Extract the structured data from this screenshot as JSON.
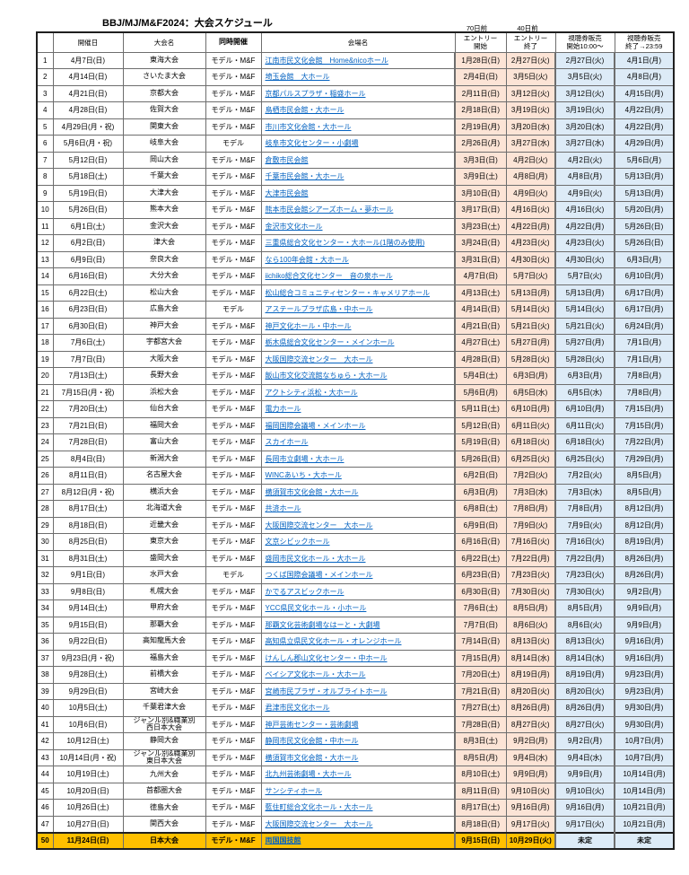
{
  "title": "BBJ/MJ/M&F2024：大会スケジュール",
  "notes": {
    "entry_start_days": "70日前",
    "entry_end_days": "40日前"
  },
  "headers": {
    "no": "",
    "date": "開催日",
    "event": "大会名",
    "category": "同時開催",
    "venue": "会場名",
    "entry_start": "エントリー\n開始",
    "entry_end": "エントリー\n終了",
    "ticket_start": "視聴券販売\n開始10:00～",
    "ticket_end": "視聴券販売\n終了→23:59"
  },
  "colors": {
    "entry_bg": "#fce4d6",
    "ticket_bg": "#ddebf7",
    "final_bg": "#ffc000",
    "link": "#0563c1"
  },
  "rows": [
    {
      "no": "1",
      "date": "4月7日(日)",
      "event": "東海大会",
      "category": "モデル・M&F",
      "venue": "江南市民文化会館　Home&nicoホール",
      "entry_start": "1月28日(日)",
      "entry_end": "2月27日(火)",
      "ticket_start": "2月27日(火)",
      "ticket_end": "4月1日(月)"
    },
    {
      "no": "2",
      "date": "4月14日(日)",
      "event": "さいたま大会",
      "category": "モデル・M&F",
      "venue": "埼玉会館　大ホール",
      "entry_start": "2月4日(日)",
      "entry_end": "3月5日(火)",
      "ticket_start": "3月5日(火)",
      "ticket_end": "4月8日(月)"
    },
    {
      "no": "3",
      "date": "4月21日(日)",
      "event": "京都大会",
      "category": "モデル・M&F",
      "venue": "京都パルスプラザ・稲盛ホール",
      "entry_start": "2月11日(日)",
      "entry_end": "3月12日(火)",
      "ticket_start": "3月12日(火)",
      "ticket_end": "4月15日(月)"
    },
    {
      "no": "4",
      "date": "4月28日(日)",
      "event": "佐賀大会",
      "category": "モデル・M&F",
      "venue": "鳥栖市民会館・大ホール",
      "entry_start": "2月18日(日)",
      "entry_end": "3月19日(火)",
      "ticket_start": "3月19日(火)",
      "ticket_end": "4月22日(月)"
    },
    {
      "no": "5",
      "date": "4月29日(月・祝)",
      "event": "関東大会",
      "category": "モデル・M&F",
      "venue": "市川市文化会館・大ホール",
      "entry_start": "2月19日(月)",
      "entry_end": "3月20日(水)",
      "ticket_start": "3月20日(水)",
      "ticket_end": "4月22日(月)"
    },
    {
      "no": "6",
      "date": "5月6日(月・祝)",
      "event": "岐阜大会",
      "category": "モデル",
      "venue": "岐阜市文化センター・小劇場",
      "entry_start": "2月26日(月)",
      "entry_end": "3月27日(水)",
      "ticket_start": "3月27日(水)",
      "ticket_end": "4月29日(月)"
    },
    {
      "no": "7",
      "date": "5月12日(日)",
      "event": "岡山大会",
      "category": "モデル・M&F",
      "venue": "倉敷市民会館",
      "entry_start": "3月3日(日)",
      "entry_end": "4月2日(火)",
      "ticket_start": "4月2日(火)",
      "ticket_end": "5月6日(月)"
    },
    {
      "no": "8",
      "date": "5月18日(土)",
      "event": "千葉大会",
      "category": "モデル・M&F",
      "venue": "千葉市民会館・大ホール",
      "entry_start": "3月9日(土)",
      "entry_end": "4月8日(月)",
      "ticket_start": "4月8日(月)",
      "ticket_end": "5月13日(月)"
    },
    {
      "no": "9",
      "date": "5月19日(日)",
      "event": "大津大会",
      "category": "モデル・M&F",
      "venue": "大津市民会館",
      "entry_start": "3月10日(日)",
      "entry_end": "4月9日(火)",
      "ticket_start": "4月9日(火)",
      "ticket_end": "5月13日(月)"
    },
    {
      "no": "10",
      "date": "5月26日(日)",
      "event": "熊本大会",
      "category": "モデル・M&F",
      "venue": "熊本市民会館シアーズホーム・夢ホール",
      "entry_start": "3月17日(日)",
      "entry_end": "4月16日(火)",
      "ticket_start": "4月16日(火)",
      "ticket_end": "5月20日(月)"
    },
    {
      "no": "11",
      "date": "6月1日(土)",
      "event": "金沢大会",
      "category": "モデル・M&F",
      "venue": "金沢市文化ホール",
      "entry_start": "3月23日(土)",
      "entry_end": "4月22日(月)",
      "ticket_start": "4月22日(月)",
      "ticket_end": "5月26日(日)"
    },
    {
      "no": "12",
      "date": "6月2日(日)",
      "event": "津大会",
      "category": "モデル・M&F",
      "venue": "三重県総合文化センター・大ホール(1階のみ使用)",
      "entry_start": "3月24日(日)",
      "entry_end": "4月23日(火)",
      "ticket_start": "4月23日(火)",
      "ticket_end": "5月26日(日)"
    },
    {
      "no": "13",
      "date": "6月9日(日)",
      "event": "奈良大会",
      "category": "モデル・M&F",
      "venue": "なら100年会館・大ホール",
      "entry_start": "3月31日(日)",
      "entry_end": "4月30日(火)",
      "ticket_start": "4月30日(火)",
      "ticket_end": "6月3日(月)"
    },
    {
      "no": "14",
      "date": "6月16日(日)",
      "event": "大分大会",
      "category": "モデル・M&F",
      "venue": "iichiko総合文化センター　音の泉ホール",
      "entry_start": "4月7日(日)",
      "entry_end": "5月7日(火)",
      "ticket_start": "5月7日(火)",
      "ticket_end": "6月10日(月)"
    },
    {
      "no": "15",
      "date": "6月22日(土)",
      "event": "松山大会",
      "category": "モデル・M&F",
      "venue": "松山総合コミュニティセンター・キャメリアホール",
      "entry_start": "4月13日(土)",
      "entry_end": "5月13日(月)",
      "ticket_start": "5月13日(月)",
      "ticket_end": "6月17日(月)"
    },
    {
      "no": "16",
      "date": "6月23日(日)",
      "event": "広島大会",
      "category": "モデル",
      "venue": "アステールプラザ広島・中ホール",
      "entry_start": "4月14日(日)",
      "entry_end": "5月14日(火)",
      "ticket_start": "5月14日(火)",
      "ticket_end": "6月17日(月)"
    },
    {
      "no": "17",
      "date": "6月30日(日)",
      "event": "神戸大会",
      "category": "モデル・M&F",
      "venue": "神戸文化ホール・中ホール",
      "entry_start": "4月21日(日)",
      "entry_end": "5月21日(火)",
      "ticket_start": "5月21日(火)",
      "ticket_end": "6月24日(月)"
    },
    {
      "no": "18",
      "date": "7月6日(土)",
      "event": "宇都宮大会",
      "category": "モデル・M&F",
      "venue": "栃木県総合文化センター・メインホール",
      "entry_start": "4月27日(土)",
      "entry_end": "5月27日(月)",
      "ticket_start": "5月27日(月)",
      "ticket_end": "7月1日(月)"
    },
    {
      "no": "19",
      "date": "7月7日(日)",
      "event": "大阪大会",
      "category": "モデル・M&F",
      "venue": "大阪国際交流センター　大ホール",
      "entry_start": "4月28日(日)",
      "entry_end": "5月28日(火)",
      "ticket_start": "5月28日(火)",
      "ticket_end": "7月1日(月)"
    },
    {
      "no": "20",
      "date": "7月13日(土)",
      "event": "長野大会",
      "category": "モデル・M&F",
      "venue": "飯山市文化交流館なちゅら・大ホール",
      "entry_start": "5月4日(土)",
      "entry_end": "6月3日(月)",
      "ticket_start": "6月3日(月)",
      "ticket_end": "7月8日(月)"
    },
    {
      "no": "21",
      "date": "7月15日(月・祝)",
      "event": "浜松大会",
      "category": "モデル・M&F",
      "venue": "アクトシティ浜松・大ホール",
      "entry_start": "5月6日(月)",
      "entry_end": "6月5日(水)",
      "ticket_start": "6月5日(水)",
      "ticket_end": "7月8日(月)"
    },
    {
      "no": "22",
      "date": "7月20日(土)",
      "event": "仙台大会",
      "category": "モデル・M&F",
      "venue": "電力ホール",
      "entry_start": "5月11日(土)",
      "entry_end": "6月10日(月)",
      "ticket_start": "6月10日(月)",
      "ticket_end": "7月15日(月)"
    },
    {
      "no": "23",
      "date": "7月21日(日)",
      "event": "福岡大会",
      "category": "モデル・M&F",
      "venue": "福岡国際会議場・メインホール",
      "entry_start": "5月12日(日)",
      "entry_end": "6月11日(火)",
      "ticket_start": "6月11日(火)",
      "ticket_end": "7月15日(月)"
    },
    {
      "no": "24",
      "date": "7月28日(日)",
      "event": "富山大会",
      "category": "モデル・M&F",
      "venue": "スカイホール",
      "entry_start": "5月19日(日)",
      "entry_end": "6月18日(火)",
      "ticket_start": "6月18日(火)",
      "ticket_end": "7月22日(月)"
    },
    {
      "no": "25",
      "date": "8月4日(日)",
      "event": "新潟大会",
      "category": "モデル・M&F",
      "venue": "長岡市立劇場・大ホール",
      "entry_start": "5月26日(日)",
      "entry_end": "6月25日(火)",
      "ticket_start": "6月25日(火)",
      "ticket_end": "7月29日(月)"
    },
    {
      "no": "26",
      "date": "8月11日(日)",
      "event": "名古屋大会",
      "category": "モデル・M&F",
      "venue": "WINCあいち・大ホール",
      "entry_start": "6月2日(日)",
      "entry_end": "7月2日(火)",
      "ticket_start": "7月2日(火)",
      "ticket_end": "8月5日(月)"
    },
    {
      "no": "27",
      "date": "8月12日(月・祝)",
      "event": "横浜大会",
      "category": "モデル・M&F",
      "venue": "横須賀市文化会館・大ホール",
      "entry_start": "6月3日(月)",
      "entry_end": "7月3日(水)",
      "ticket_start": "7月3日(水)",
      "ticket_end": "8月5日(月)"
    },
    {
      "no": "28",
      "date": "8月17日(土)",
      "event": "北海道大会",
      "category": "モデル・M&F",
      "venue": "共済ホール",
      "entry_start": "6月8日(土)",
      "entry_end": "7月8日(月)",
      "ticket_start": "7月8日(月)",
      "ticket_end": "8月12日(月)"
    },
    {
      "no": "29",
      "date": "8月18日(日)",
      "event": "近畿大会",
      "category": "モデル・M&F",
      "venue": "大阪国際交流センター　大ホール",
      "entry_start": "6月9日(日)",
      "entry_end": "7月9日(火)",
      "ticket_start": "7月9日(火)",
      "ticket_end": "8月12日(月)"
    },
    {
      "no": "30",
      "date": "8月25日(日)",
      "event": "東京大会",
      "category": "モデル・M&F",
      "venue": "文京シビックホール",
      "entry_start": "6月16日(日)",
      "entry_end": "7月16日(火)",
      "ticket_start": "7月16日(火)",
      "ticket_end": "8月19日(月)"
    },
    {
      "no": "31",
      "date": "8月31日(土)",
      "event": "盛岡大会",
      "category": "モデル・M&F",
      "venue": "盛岡市民文化ホール・大ホール",
      "entry_start": "6月22日(土)",
      "entry_end": "7月22日(月)",
      "ticket_start": "7月22日(月)",
      "ticket_end": "8月26日(月)"
    },
    {
      "no": "32",
      "date": "9月1日(日)",
      "event": "水戸大会",
      "category": "モデル",
      "venue": "つくば国際会議場・メインホール",
      "entry_start": "6月23日(日)",
      "entry_end": "7月23日(火)",
      "ticket_start": "7月23日(火)",
      "ticket_end": "8月26日(月)"
    },
    {
      "no": "33",
      "date": "9月8日(日)",
      "event": "札幌大会",
      "category": "モデル・M&F",
      "venue": "かでるアスビックホール",
      "entry_start": "6月30日(日)",
      "entry_end": "7月30日(火)",
      "ticket_start": "7月30日(火)",
      "ticket_end": "9月2日(月)"
    },
    {
      "no": "34",
      "date": "9月14日(土)",
      "event": "甲府大会",
      "category": "モデル・M&F",
      "venue": "YCC県民文化ホール・小ホール",
      "entry_start": "7月6日(土)",
      "entry_end": "8月5日(月)",
      "ticket_start": "8月5日(月)",
      "ticket_end": "9月9日(月)"
    },
    {
      "no": "35",
      "date": "9月15日(日)",
      "event": "那覇大会",
      "category": "モデル・M&F",
      "venue": "那覇文化芸術劇場なはーと・大劇場",
      "entry_start": "7月7日(日)",
      "entry_end": "8月6日(火)",
      "ticket_start": "8月6日(火)",
      "ticket_end": "9月9日(月)"
    },
    {
      "no": "36",
      "date": "9月22日(日)",
      "event": "高知龍馬大会",
      "category": "モデル・M&F",
      "venue": "高知県立県民文化ホール・オレンジホール",
      "entry_start": "7月14日(日)",
      "entry_end": "8月13日(火)",
      "ticket_start": "8月13日(火)",
      "ticket_end": "9月16日(月)"
    },
    {
      "no": "37",
      "date": "9月23日(月・祝)",
      "event": "福島大会",
      "category": "モデル・M&F",
      "venue": "けんしん郡山文化センター・中ホール",
      "entry_start": "7月15日(月)",
      "entry_end": "8月14日(水)",
      "ticket_start": "8月14日(水)",
      "ticket_end": "9月16日(月)"
    },
    {
      "no": "38",
      "date": "9月28日(土)",
      "event": "前橋大会",
      "category": "モデル・M&F",
      "venue": "ベイシア文化ホール・大ホール",
      "entry_start": "7月20日(土)",
      "entry_end": "8月19日(月)",
      "ticket_start": "8月19日(月)",
      "ticket_end": "9月23日(月)"
    },
    {
      "no": "39",
      "date": "9月29日(日)",
      "event": "宮崎大会",
      "category": "モデル・M&F",
      "venue": "宮崎市民プラザ・オルブライトホール",
      "entry_start": "7月21日(日)",
      "entry_end": "8月20日(火)",
      "ticket_start": "8月20日(火)",
      "ticket_end": "9月23日(月)"
    },
    {
      "no": "40",
      "date": "10月5日(土)",
      "event": "千葉君津大会",
      "category": "モデル・M&F",
      "venue": "君津市民文化ホール",
      "entry_start": "7月27日(土)",
      "entry_end": "8月26日(月)",
      "ticket_start": "8月26日(月)",
      "ticket_end": "9月30日(月)"
    },
    {
      "no": "41",
      "date": "10月6日(日)",
      "event": "ジャンル別&職業別\n西日本大会",
      "category": "モデル・M&F",
      "venue": "神戸芸術センター・芸術劇場",
      "entry_start": "7月28日(日)",
      "entry_end": "8月27日(火)",
      "ticket_start": "8月27日(火)",
      "ticket_end": "9月30日(月)"
    },
    {
      "no": "42",
      "date": "10月12日(土)",
      "event": "静岡大会",
      "category": "モデル・M&F",
      "venue": "静岡市民文化会館・中ホール",
      "entry_start": "8月3日(土)",
      "entry_end": "9月2日(月)",
      "ticket_start": "9月2日(月)",
      "ticket_end": "10月7日(月)"
    },
    {
      "no": "43",
      "date": "10月14日(月・祝)",
      "event": "ジャンル別&職業別\n東日本大会",
      "category": "モデル・M&F",
      "venue": "横須賀市文化会館・大ホール",
      "entry_start": "8月5日(月)",
      "entry_end": "9月4日(水)",
      "ticket_start": "9月4日(水)",
      "ticket_end": "10月7日(月)"
    },
    {
      "no": "44",
      "date": "10月19日(土)",
      "event": "九州大会",
      "category": "モデル・M&F",
      "venue": "北九州芸術劇場・大ホール",
      "entry_start": "8月10日(土)",
      "entry_end": "9月9日(月)",
      "ticket_start": "9月9日(月)",
      "ticket_end": "10月14日(月)"
    },
    {
      "no": "45",
      "date": "10月20日(日)",
      "event": "首都圏大会",
      "category": "モデル・M&F",
      "venue": "サンシティホール",
      "entry_start": "8月11日(日)",
      "entry_end": "9月10日(火)",
      "ticket_start": "9月10日(火)",
      "ticket_end": "10月14日(月)"
    },
    {
      "no": "46",
      "date": "10月26日(土)",
      "event": "徳島大会",
      "category": "モデル・M&F",
      "venue": "藍住町総合文化ホール・大ホール",
      "entry_start": "8月17日(土)",
      "entry_end": "9月16日(月)",
      "ticket_start": "9月16日(月)",
      "ticket_end": "10月21日(月)"
    },
    {
      "no": "47",
      "date": "10月27日(日)",
      "event": "関西大会",
      "category": "モデル・M&F",
      "venue": "大阪国際交流センター　大ホール",
      "entry_start": "8月18日(日)",
      "entry_end": "9月17日(火)",
      "ticket_start": "9月17日(火)",
      "ticket_end": "10月21日(月)"
    },
    {
      "no": "50",
      "date": "11月24日(日)",
      "event": "日本大会",
      "category": "モデル・M&F",
      "venue": "両国国技館",
      "entry_start": "9月15日(日)",
      "entry_end": "10月29日(火)",
      "ticket_start": "未定",
      "ticket_end": "未定",
      "highlight": true
    }
  ]
}
